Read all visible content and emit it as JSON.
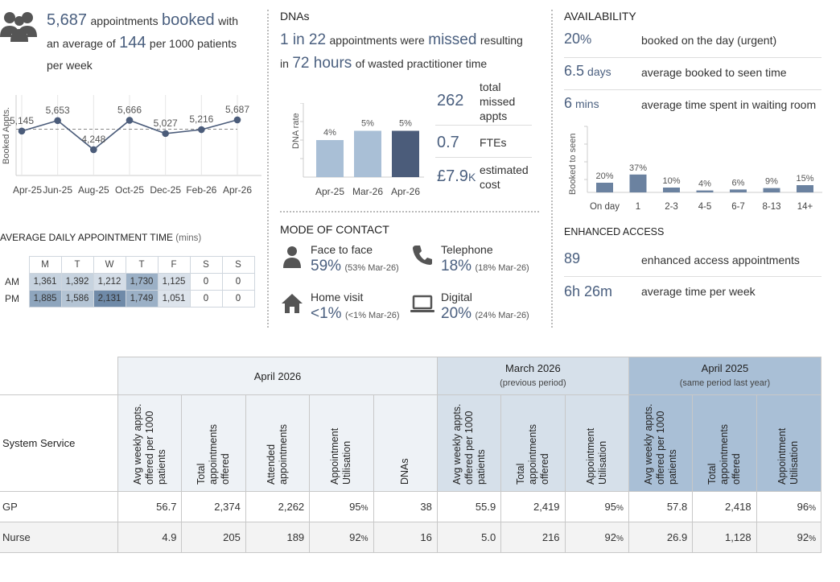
{
  "summary": {
    "appts_value": "5,687",
    "appts_text1": "appointments",
    "appts_booked": "booked",
    "appts_text2": "with",
    "avg_text1": "an average of",
    "avg_value": "144",
    "avg_text2": "per 1000 patients",
    "avg_text3": "per week"
  },
  "chart_data": [
    {
      "type": "line",
      "ylabel": "Booked Appts.",
      "categories": [
        "Apr-25",
        "Jun-25",
        "Aug-25",
        "Oct-25",
        "Dec-25",
        "Feb-26",
        "Apr-26"
      ],
      "series": [
        {
          "values": [
            5145,
            5653,
            4248,
            5666,
            5027,
            5216,
            5687
          ]
        }
      ],
      "labels": [
        "5,145",
        "5,653",
        "4,248",
        "5,666",
        "5,027",
        "5,216",
        "5,687"
      ]
    },
    {
      "type": "bar",
      "ylabel": "DNA rate",
      "categories": [
        "Apr-25",
        "Mar-26",
        "Apr-26"
      ],
      "values": [
        4,
        5,
        5
      ],
      "labels": [
        "4%",
        "5%",
        "5%"
      ],
      "colors": [
        "#a9bfd6",
        "#a9bfd6",
        "#4b5c7a"
      ]
    },
    {
      "type": "bar",
      "ylabel": "Booked to seen",
      "categories": [
        "On day",
        "1",
        "2-3",
        "4-5",
        "6-7",
        "8-13",
        "14+"
      ],
      "values": [
        20,
        37,
        10,
        4,
        6,
        9,
        15
      ],
      "labels": [
        "20%",
        "37%",
        "10%",
        "4%",
        "6%",
        "9%",
        "15%"
      ],
      "colors": [
        "#6b82a0"
      ]
    }
  ],
  "daily": {
    "title": "AVERAGE DAILY APPOINTMENT TIME",
    "unit": "(mins)",
    "days": [
      "M",
      "T",
      "W",
      "T",
      "F",
      "S",
      "S"
    ],
    "rows": [
      {
        "label": "AM",
        "values": [
          "1,361",
          "1,392",
          "1,212",
          "1,730",
          "1,125",
          "0",
          "0"
        ],
        "shades": [
          "#c7d3df",
          "#c7d3df",
          "#d4dde7",
          "#9bb0c6",
          "#d9e1ea",
          "#ffffff",
          "#ffffff"
        ]
      },
      {
        "label": "PM",
        "values": [
          "1,885",
          "1,586",
          "2,131",
          "1,749",
          "1,051",
          "0",
          "0"
        ],
        "shades": [
          "#8ea5bd",
          "#b4c4d4",
          "#6f8aa8",
          "#9bb0c6",
          "#dde4ec",
          "#ffffff",
          "#ffffff"
        ]
      }
    ]
  },
  "dna": {
    "title": "DNAs",
    "l1a": "1 in 22",
    "l1b": "appointments were",
    "l1c": "missed",
    "l1d": "resulting",
    "l2a": "in",
    "l2b": "72 hours",
    "l2c": "of wasted practitioner time",
    "stats": [
      {
        "value": "262",
        "label": "total missed appts"
      },
      {
        "value": "0.7",
        "label": "FTEs"
      },
      {
        "value": "£7.9",
        "suffix": "K",
        "label": "estimated cost"
      }
    ]
  },
  "contact": {
    "title": "MODE OF CONTACT",
    "items": [
      {
        "label": "Face to face",
        "value": "59%",
        "prev": "(53% Mar-26)"
      },
      {
        "label": "Telephone",
        "value": "18%",
        "prev": "(18% Mar-26)"
      },
      {
        "label": "Home visit",
        "value": "<1%",
        "prev": "(<1% Mar-26)"
      },
      {
        "label": "Digital",
        "value": "20%",
        "prev": "(24% Mar-26)"
      }
    ]
  },
  "availability": {
    "title": "AVAILABILITY",
    "rows": [
      {
        "value": "20",
        "unit": "%",
        "label": "booked on the day (urgent)"
      },
      {
        "value": "6.5",
        "unit": "days",
        "label": "average booked to seen time"
      },
      {
        "value": "6",
        "unit": "mins",
        "label": "average time spent in waiting room"
      }
    ]
  },
  "enhanced": {
    "title": "ENHANCED ACCESS",
    "rows": [
      {
        "value": "89",
        "label": "enhanced access appointments"
      },
      {
        "value": "6h 26m",
        "label": "average time per week"
      }
    ]
  },
  "table": {
    "service_header": "System Service",
    "groups": [
      {
        "title": "April 2026",
        "sub": ""
      },
      {
        "title": "March 2026",
        "sub": "(previous period)"
      },
      {
        "title": "April 2025",
        "sub": "(same period last year)"
      }
    ],
    "col_headers": [
      "Avg weekly appts. offered per 1000 patients",
      "Total appointments offered",
      "Attended appointments",
      "Appointment Utilisation",
      "DNAs",
      "Avg weekly appts. offered per 1000 patients",
      "Total appointments offered",
      "Appointment Utilisation",
      "Avg weekly appts. offered per 1000 patients",
      "Total appointments offered",
      "Appointment Utilisation"
    ],
    "rows": [
      {
        "service": "GP",
        "cells": [
          "56.7",
          "2,374",
          "2,262",
          "95%",
          "38",
          "55.9",
          "2,419",
          "95%",
          "57.8",
          "2,418",
          "96%"
        ]
      },
      {
        "service": "Nurse",
        "cells": [
          "4.9",
          "205",
          "189",
          "92%",
          "16",
          "5.0",
          "216",
          "92%",
          "26.9",
          "1,128",
          "92%"
        ]
      }
    ]
  }
}
